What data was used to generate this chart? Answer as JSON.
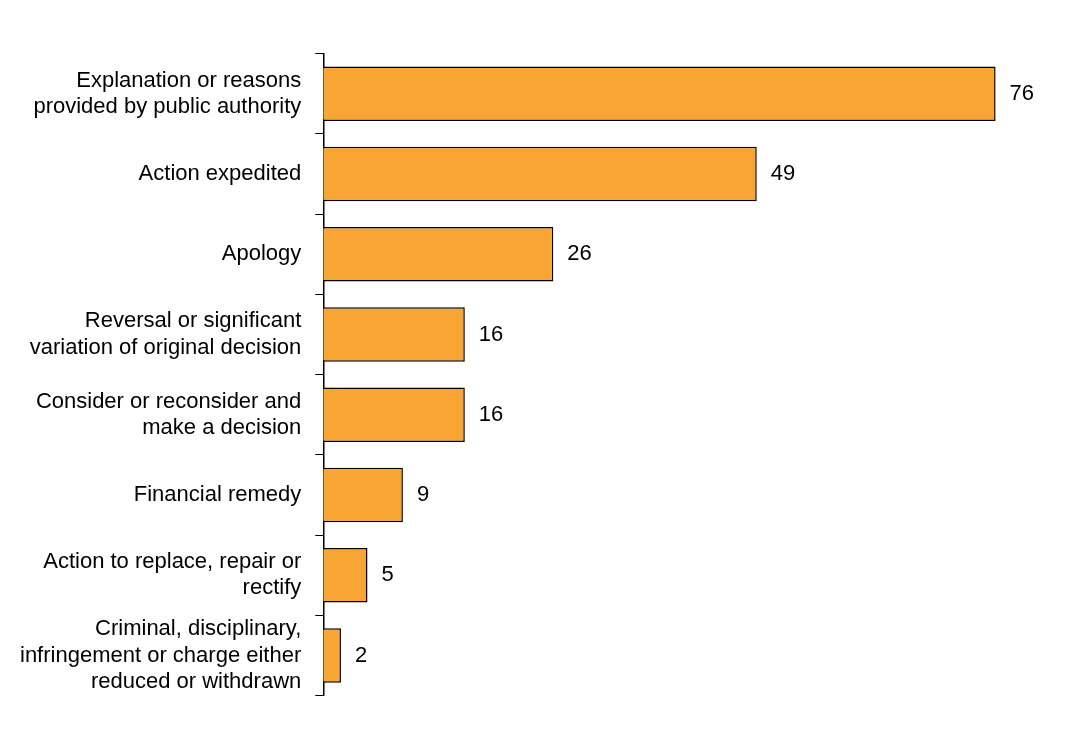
{
  "chart_data": {
    "type": "bar",
    "orientation": "horizontal",
    "categories": [
      "Explanation or reasons provided by public authority",
      "Action expedited",
      "Apology",
      "Reversal or significant variation of original decision",
      "Consider or reconsider and make a decision",
      "Financial remedy",
      "Action to replace, repair or rectify",
      "Criminal, disciplinary, infringement or charge either reduced or withdrawn"
    ],
    "values": [
      76,
      49,
      26,
      16,
      16,
      9,
      5,
      2
    ],
    "color": "#f9a533",
    "data_labels": true,
    "grid": false,
    "legend": false,
    "tick_labels": "y"
  }
}
